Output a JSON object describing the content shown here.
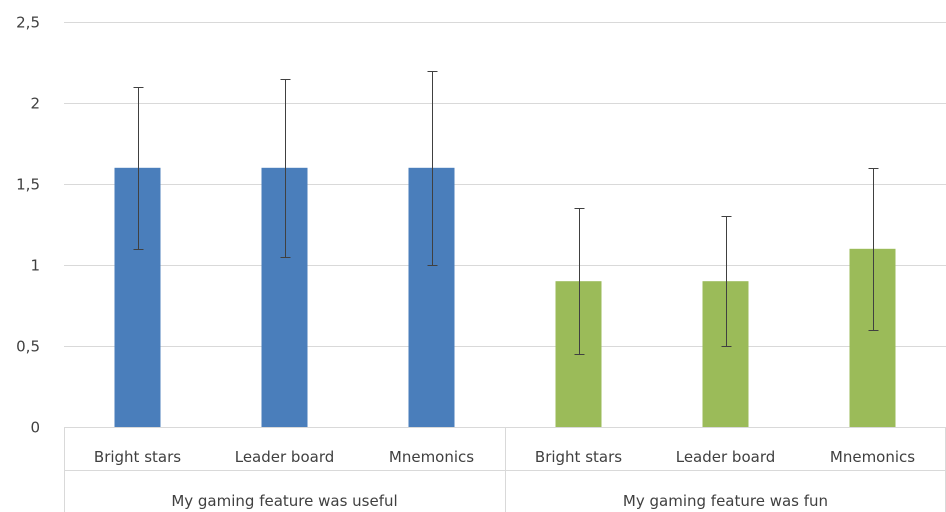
{
  "chart_data": {
    "type": "bar",
    "groups": [
      {
        "label": "My gaming feature was useful",
        "color": "#4a7ebb",
        "bars": [
          {
            "category": "Bright stars",
            "value": 1.6,
            "error_low": 1.1,
            "error_high": 2.1
          },
          {
            "category": "Leader board",
            "value": 1.6,
            "error_low": 1.05,
            "error_high": 2.15
          },
          {
            "category": "Mnemonics",
            "value": 1.6,
            "error_low": 1.0,
            "error_high": 2.2
          }
        ]
      },
      {
        "label": "My gaming feature was fun",
        "color": "#9bbb59",
        "bars": [
          {
            "category": "Bright stars",
            "value": 0.9,
            "error_low": 0.45,
            "error_high": 1.35
          },
          {
            "category": "Leader board",
            "value": 0.9,
            "error_low": 0.5,
            "error_high": 1.3
          },
          {
            "category": "Mnemonics",
            "value": 1.1,
            "error_low": 0.6,
            "error_high": 1.6
          }
        ]
      }
    ],
    "ylim": [
      0,
      2.5
    ],
    "yticks": [
      "0",
      "0,5",
      "1",
      "1,5",
      "2",
      "2,5"
    ],
    "ytick_values": [
      0,
      0.5,
      1,
      1.5,
      2,
      2.5
    ],
    "grid": true
  }
}
